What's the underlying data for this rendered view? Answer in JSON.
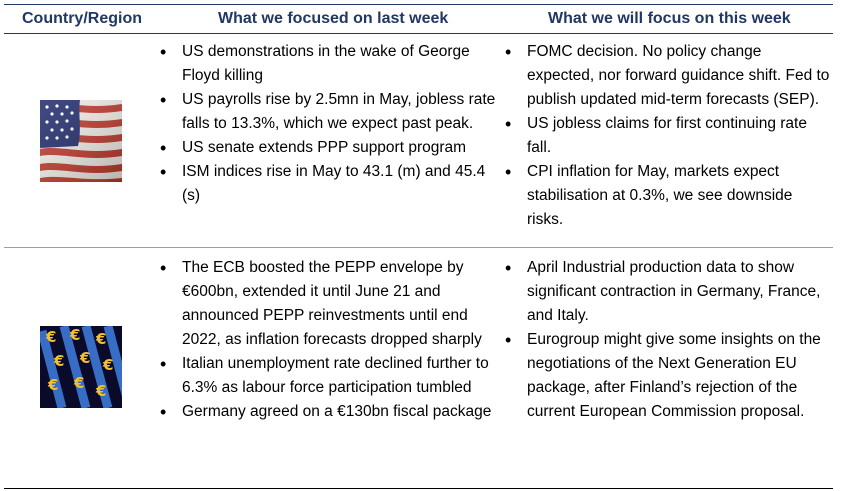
{
  "header": {
    "col1": "Country/Region",
    "col2": "What we focused on last week",
    "col3": "What we will focus on this week"
  },
  "rows": [
    {
      "region_icon": "us-flag-icon",
      "last_week": [
        "US demonstrations in the wake of George Floyd killing",
        "US payrolls rise by 2.5mn in May, jobless rate falls to 13.3%, which we expect past peak.",
        "US senate extends PPP support program",
        "ISM indices rise in May to 43.1 (m) and 45.4 (s)"
      ],
      "this_week": [
        "FOMC decision. No policy change expected, nor forward guidance shift. Fed to publish updated mid-term forecasts (SEP).",
        "US jobless claims for first continuing rate fall.",
        "CPI inflation for May, markets expect stabilisation at 0.3%, we see downside risks."
      ]
    },
    {
      "region_icon": "euro-symbols-icon",
      "last_week": [
        "The ECB boosted the PEPP envelope by €600bn, extended it until June 21 and announced PEPP reinvestments until end 2022, as inflation forecasts dropped sharply",
        "Italian unemployment rate declined further to 6.3% as labour force participation tumbled",
        "Germany agreed on a €130bn fiscal package"
      ],
      "this_week": [
        "April Industrial production data to show significant contraction in Germany, France, and Italy.",
        "Eurogroup might give some insights on the negotiations of the Next Generation EU package, after Finland’s rejection of the current European Commission proposal."
      ]
    }
  ]
}
